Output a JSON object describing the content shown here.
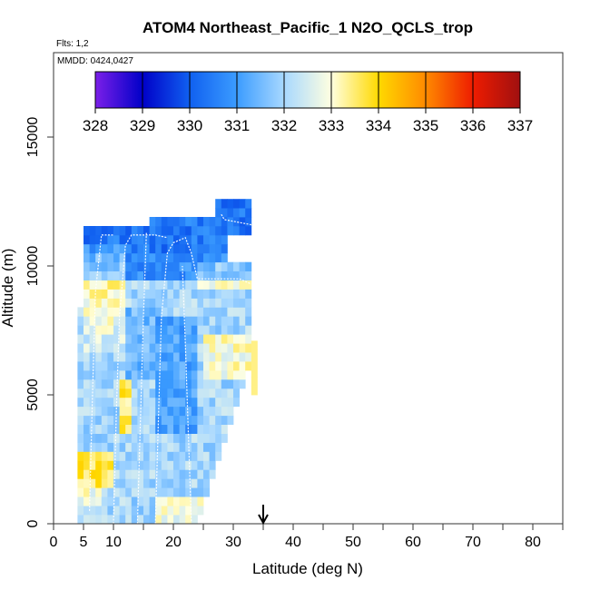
{
  "chart_data": {
    "type": "heatmap",
    "title": "ATOM4 Northeast_Pacific_1 N2O_QCLS_trop",
    "flights_label": "Flts: 1,2",
    "mmdd_label": "MMDD: 0424,0427",
    "xlabel": "Latitude (deg N)",
    "ylabel": "Altitude (m)",
    "xlim": [
      0,
      85
    ],
    "ylim": [
      0,
      18000
    ],
    "x_ticks": [
      0,
      5,
      10,
      20,
      30,
      40,
      50,
      60,
      70,
      80
    ],
    "x_tick_labels": [
      "0",
      "5",
      "10",
      "20",
      "30",
      "40",
      "50",
      "60",
      "70",
      "80"
    ],
    "y_ticks": [
      0,
      5000,
      10000,
      15000
    ],
    "y_tick_labels": [
      "0",
      "5000",
      "10000",
      "15000"
    ],
    "colorbar": {
      "min": 328,
      "max": 337,
      "ticks": [
        328,
        329,
        330,
        331,
        332,
        333,
        334,
        335,
        336,
        337
      ],
      "tick_labels": [
        "328",
        "329",
        "330",
        "331",
        "332",
        "333",
        "334",
        "335",
        "336",
        "337"
      ],
      "colors": [
        "#7b1fe8",
        "#0000c8",
        "#1060f0",
        "#3b9cff",
        "#a8d8ff",
        "#ffffe0",
        "#ffd900",
        "#ff8a00",
        "#ee1c00",
        "#a01010"
      ]
    },
    "marker": {
      "latitude": 35,
      "symbol": "down-arrow"
    },
    "grid": false
  }
}
